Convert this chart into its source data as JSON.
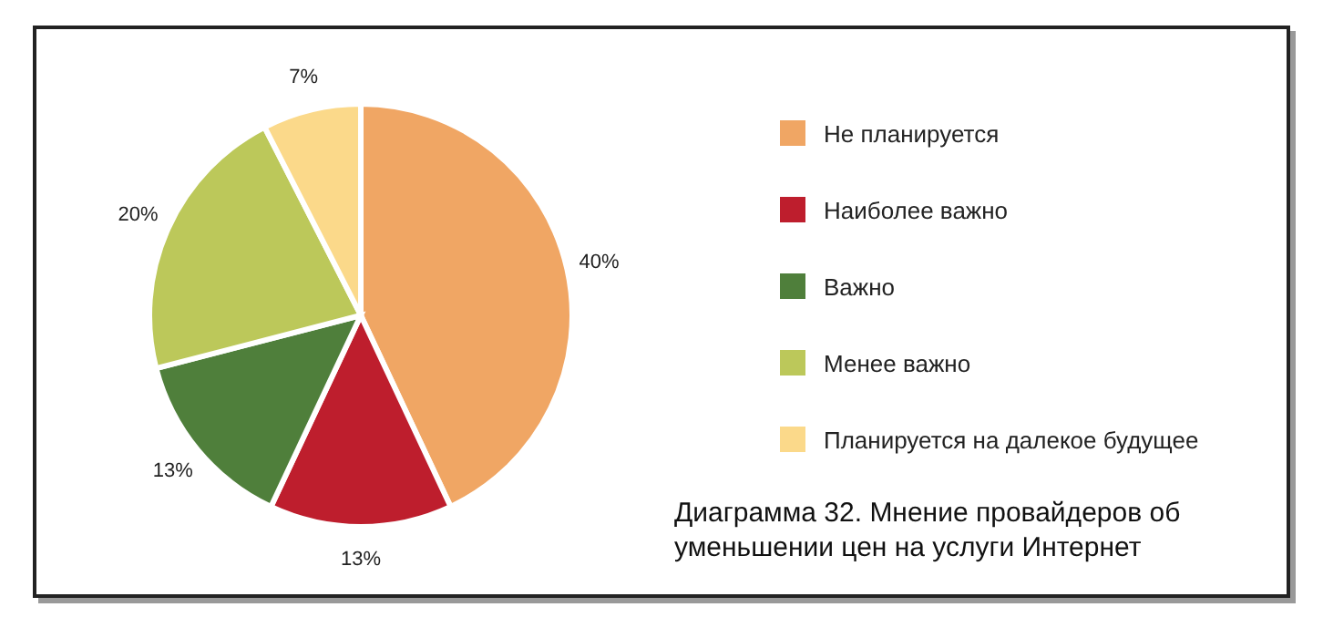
{
  "chart_data": {
    "type": "pie",
    "title": "Диаграмма 32. Мнение провайдеров об уменьшении цен на услуги Интернет",
    "categories": [
      "Не планируется",
      "Наиболее важно",
      "Важно",
      "Менее важно",
      "Планируется на далекое будущее"
    ],
    "values": [
      40,
      13,
      13,
      20,
      7
    ],
    "value_labels": [
      "40%",
      "13%",
      "13%",
      "20%",
      "7%"
    ],
    "colors": [
      "#f0a664",
      "#be1e2d",
      "#4f7f3b",
      "#bcc85a",
      "#fbd98a"
    ],
    "legend": "right"
  }
}
